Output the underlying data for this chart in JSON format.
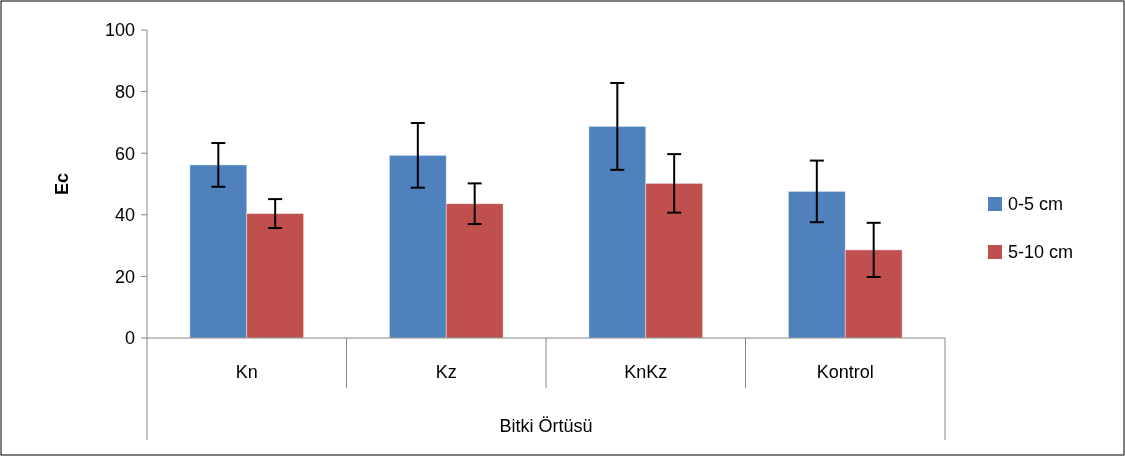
{
  "chart_data": {
    "type": "bar",
    "categories": [
      "Kn",
      "Kz",
      "KnKz",
      "Kontrol"
    ],
    "xlabel": "Bitki Örtüsü",
    "ylabel": "Ec",
    "ylim": [
      0,
      100
    ],
    "yticks": [
      0,
      20,
      40,
      60,
      80,
      100
    ],
    "grid": false,
    "legend": "right",
    "series": [
      {
        "name": "0-5 cm",
        "color": "#4f81bd",
        "values": [
          56.2,
          59.3,
          68.7,
          47.6
        ],
        "errors": [
          7.1,
          10.5,
          14.1,
          10
        ]
      },
      {
        "name": "5-10 cm",
        "color": "#c0504d",
        "values": [
          40.4,
          43.6,
          50.2,
          28.6
        ],
        "errors": [
          4.7,
          6.6,
          9.5,
          8.8
        ]
      }
    ]
  }
}
